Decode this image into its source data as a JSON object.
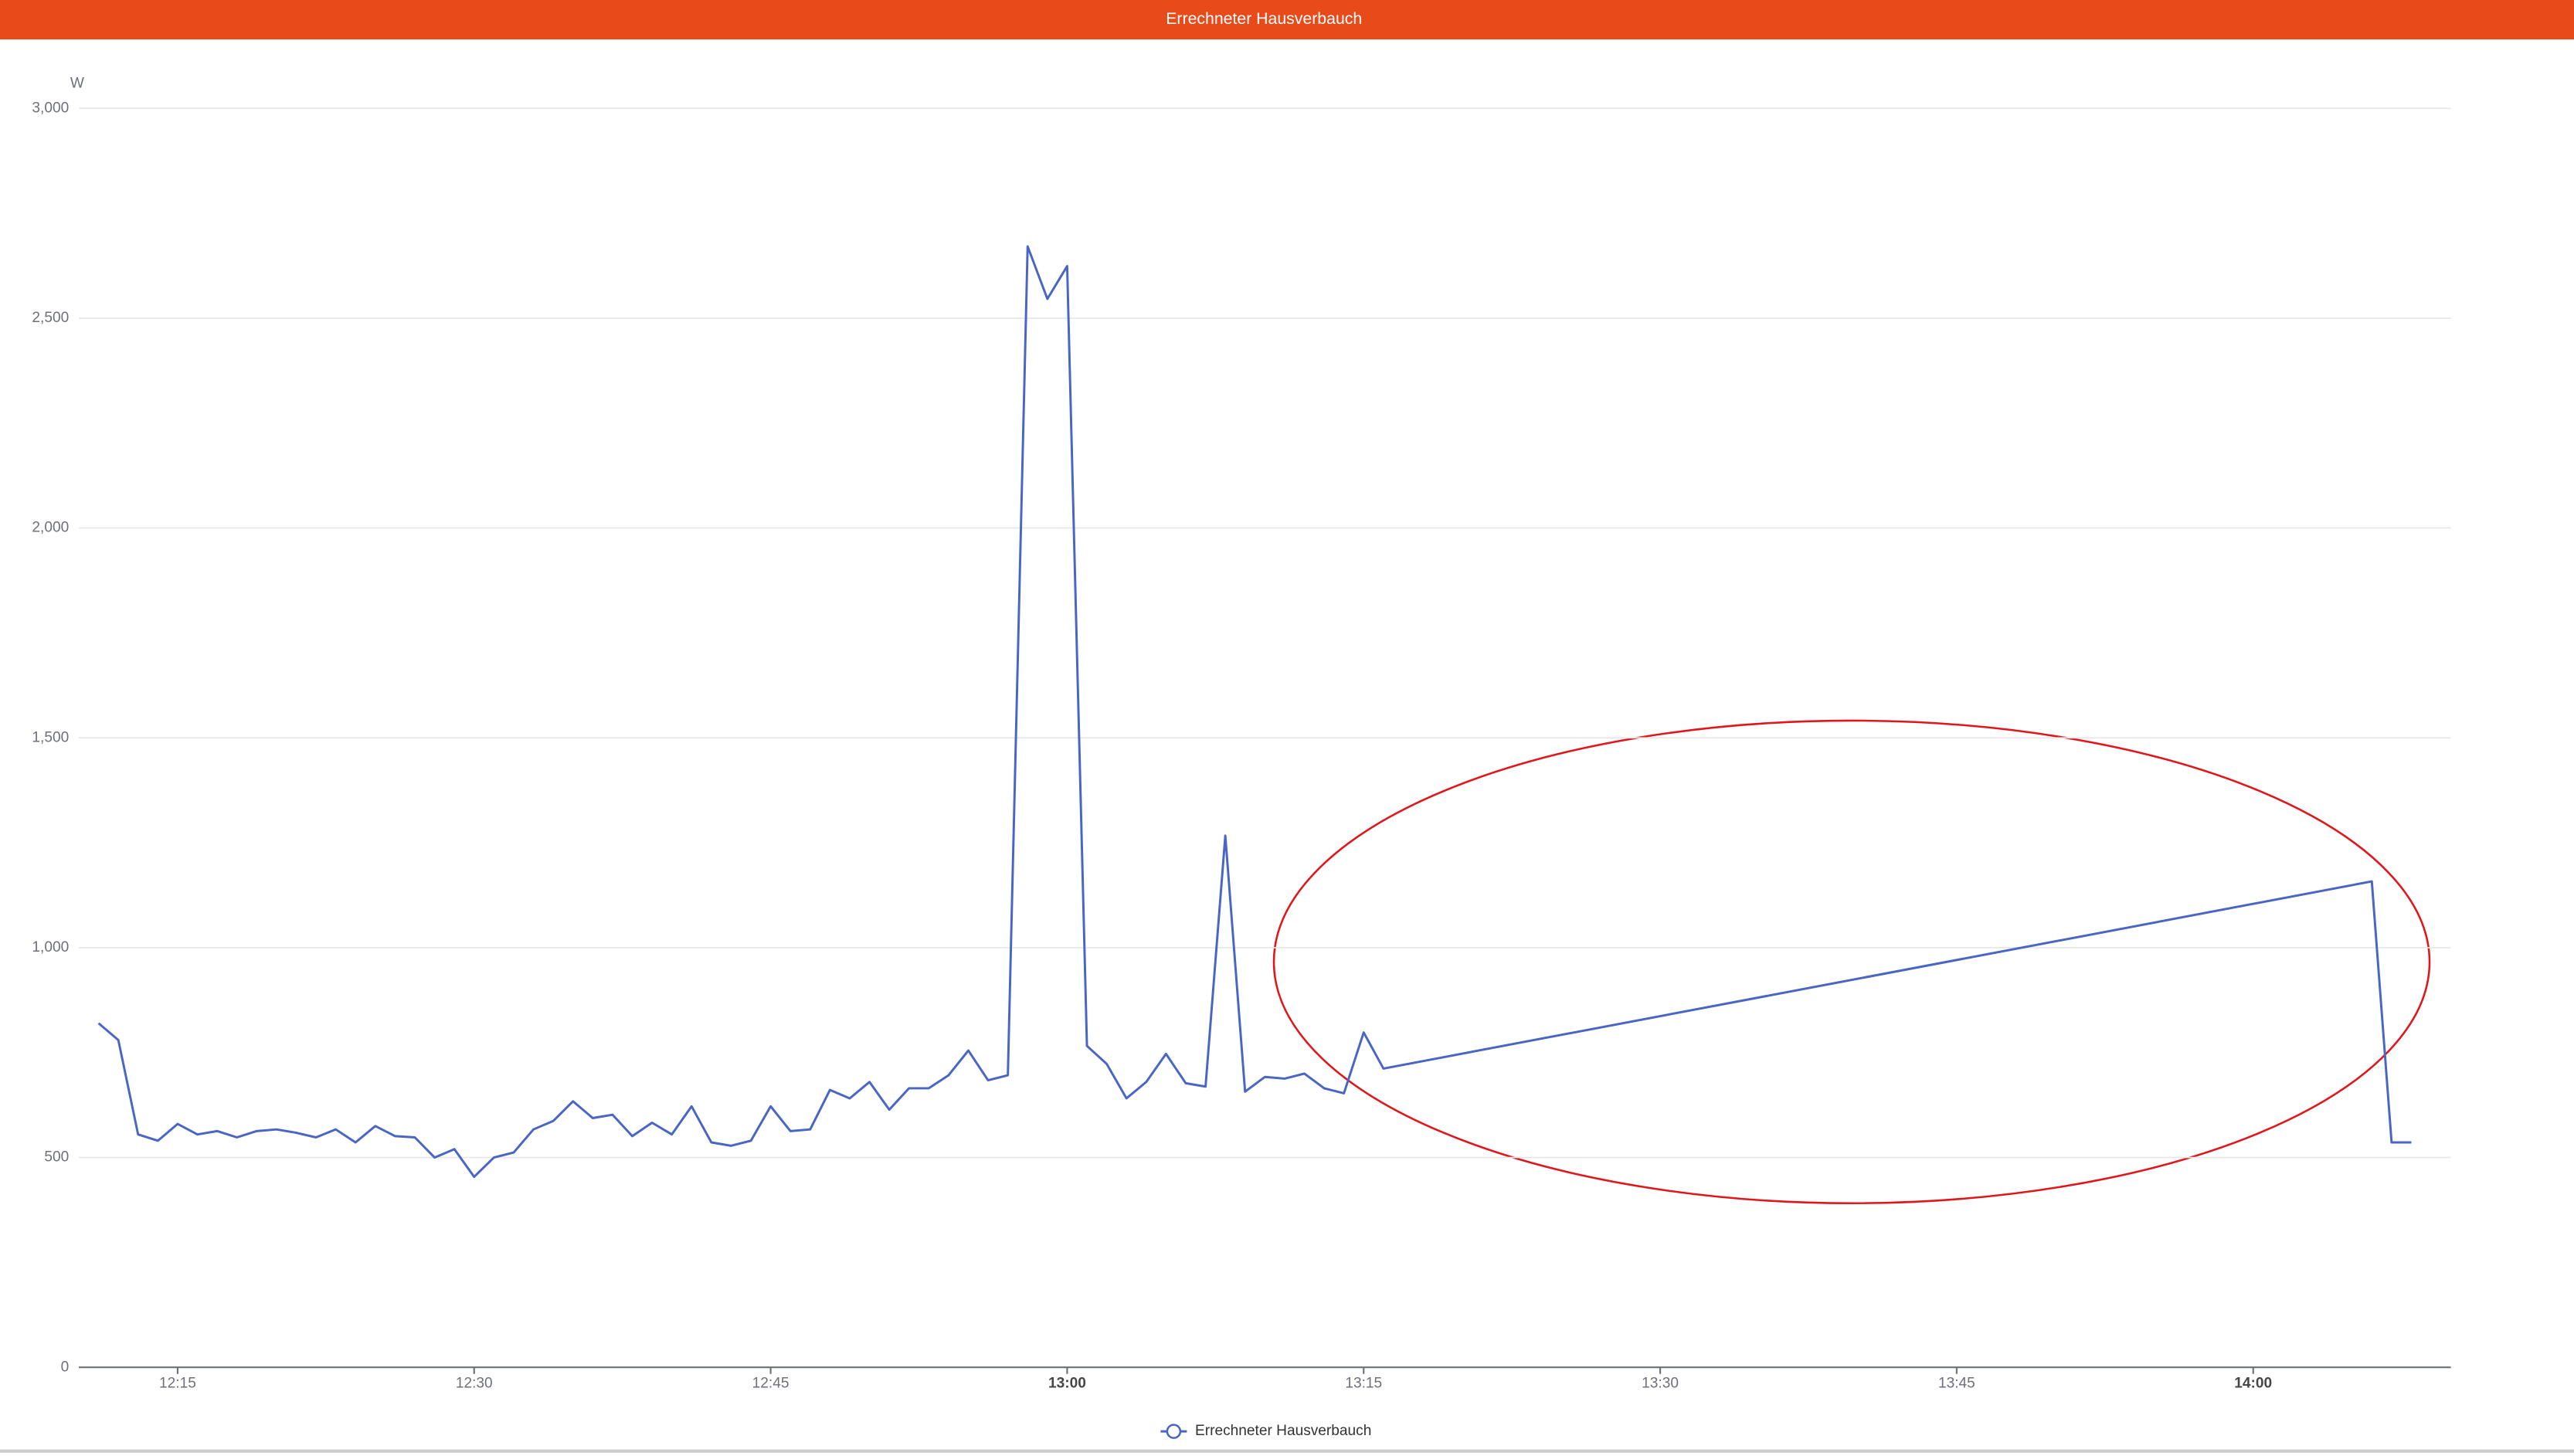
{
  "chart_data": {
    "type": "line",
    "title": "Errechneter Hausverbauch",
    "y_label": "W",
    "x": [
      "12:11",
      "12:12",
      "12:13",
      "12:14",
      "12:15",
      "12:16",
      "12:17",
      "12:18",
      "12:19",
      "12:20",
      "12:21",
      "12:22",
      "12:23",
      "12:24",
      "12:25",
      "12:26",
      "12:27",
      "12:28",
      "12:29",
      "12:30",
      "12:31",
      "12:32",
      "12:33",
      "12:34",
      "12:35",
      "12:36",
      "12:37",
      "12:38",
      "12:39",
      "12:40",
      "12:41",
      "12:42",
      "12:43",
      "12:44",
      "12:45",
      "12:46",
      "12:47",
      "12:48",
      "12:49",
      "12:50",
      "12:51",
      "12:52",
      "12:53",
      "12:54",
      "12:55",
      "12:56",
      "12:57",
      "12:58",
      "12:59",
      "13:00",
      "13:01",
      "13:02",
      "13:03",
      "13:04",
      "13:05",
      "13:06",
      "13:07",
      "13:08",
      "13:09",
      "13:10",
      "13:11",
      "13:12",
      "13:13",
      "13:14",
      "13:15",
      "13:16",
      "14:06",
      "14:07",
      "14:08"
    ],
    "series": [
      {
        "name": "Errechneter Hausverbauch",
        "color": "#4a66c4",
        "values": [
          820,
          780,
          555,
          540,
          580,
          555,
          563,
          548,
          563,
          567,
          559,
          548,
          567,
          536,
          575,
          551,
          548,
          500,
          520,
          454,
          500,
          512,
          567,
          587,
          634,
          594,
          602,
          551,
          583,
          555,
          622,
          536,
          528,
          540,
          622,
          563,
          567,
          661,
          641,
          680,
          614,
          665,
          665,
          696,
          755,
          684,
          696,
          2671,
          2546,
          2624,
          766,
          723,
          641,
          680,
          747,
          677,
          669,
          1267,
          657,
          692,
          688,
          700,
          665,
          653,
          798,
          712,
          1158,
          536,
          536
        ]
      }
    ],
    "xlim": [
      "12:10",
      "14:10"
    ],
    "xticks": [
      "12:15",
      "12:30",
      "12:45",
      "13:00",
      "13:15",
      "13:30",
      "13:45",
      "14:00"
    ],
    "ylim": [
      0,
      3000
    ],
    "yticks": [
      0,
      500,
      {
        "value": 1000,
        "label": "1,000"
      },
      {
        "value": 1500,
        "label": "1,500"
      },
      {
        "value": 2000,
        "label": "2,000"
      },
      {
        "value": 2500,
        "label": "2,500"
      },
      {
        "value": 3000,
        "label": "3,000"
      }
    ],
    "grid": true,
    "legend": "bottom"
  }
}
